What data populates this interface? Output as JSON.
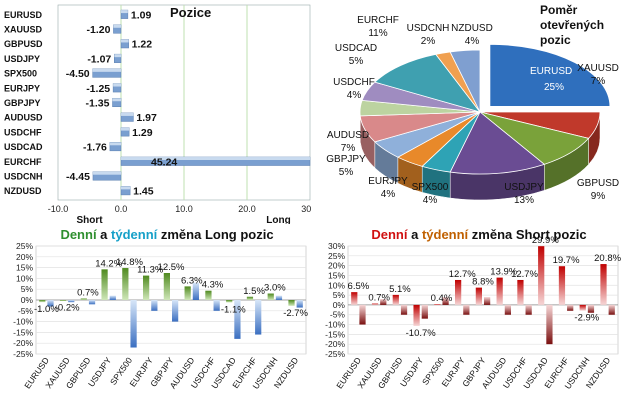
{
  "colors": {
    "bar_blue": "#7a9fd0",
    "bar_blue_light": "#dce8f6",
    "green_dark": "#4f8a1f",
    "green_light": "#cfe7b8",
    "blue_dark": "#3b6fc1",
    "blue_light": "#d7e6f8",
    "red_dark": "#c00000",
    "red_light": "#f6d6d6",
    "grid_green": "#bfe0b0",
    "title_green": "#2f8f2f",
    "title_cyan": "#16a0c8",
    "title_red": "#d01010",
    "title_orange": "#c06000"
  },
  "chart_data": [
    {
      "id": "positions",
      "type": "bar",
      "orientation": "horizontal",
      "title": "Pozice",
      "categories": [
        "EURUSD",
        "XAUUSD",
        "GBPUSD",
        "USDJPY",
        "SPX500",
        "EURJPY",
        "GBPJPY",
        "AUDUSD",
        "USDCHF",
        "USDCAD",
        "EURCHF",
        "USDCNH",
        "NZDUSD"
      ],
      "values": [
        1.09,
        -1.2,
        1.22,
        -1.07,
        -4.5,
        -1.25,
        -1.35,
        1.97,
        1.29,
        -1.76,
        45.24,
        -4.45,
        1.45
      ],
      "value_labels": [
        "1.09",
        "-1.20",
        "1.22",
        "-1.07",
        "-4.50",
        "-1.25",
        "-1.35",
        "1.97",
        "1.29",
        "-1.76",
        "45.24",
        "-4.45",
        "1.45"
      ],
      "xlim": [
        -10,
        30
      ],
      "xticks": [
        -10,
        0,
        10,
        20,
        30
      ],
      "xtick_labels": [
        "-10.0",
        "0.0",
        "10.0",
        "20.0",
        "30.0"
      ],
      "xlabel_short": "Short",
      "xlabel_long": "Long"
    },
    {
      "id": "open-ratio",
      "type": "pie",
      "title_lines": [
        "Poměr",
        "otevřených",
        "pozic"
      ],
      "slices": [
        {
          "label": "EURUSD",
          "value": 25,
          "value_label": "25%",
          "color": "#2f6fbd"
        },
        {
          "label": "XAUUSD",
          "value": 7,
          "value_label": "7%",
          "color": "#c0392b"
        },
        {
          "label": "GBPUSD",
          "value": 9,
          "value_label": "9%",
          "color": "#7aa23a"
        },
        {
          "label": "USDJPY",
          "value": 13,
          "value_label": "13%",
          "color": "#6a4c93"
        },
        {
          "label": "SPX500",
          "value": 4,
          "value_label": "4%",
          "color": "#2ea3b5"
        },
        {
          "label": "EURJPY",
          "value": 4,
          "value_label": "4%",
          "color": "#e8892a"
        },
        {
          "label": "GBPJPY",
          "value": 5,
          "value_label": "5%",
          "color": "#8fb0da"
        },
        {
          "label": "AUDUSD",
          "value": 7,
          "value_label": "7%",
          "color": "#d9898a"
        },
        {
          "label": "USDCHF",
          "value": 4,
          "value_label": "4%",
          "color": "#bcd3a0"
        },
        {
          "label": "USDCAD",
          "value": 5,
          "value_label": "5%",
          "color": "#9f8cc0"
        },
        {
          "label": "EURCHF",
          "value": 11,
          "value_label": "11%",
          "color": "#3fa0b0"
        },
        {
          "label": "USDCNH",
          "value": 2,
          "value_label": "2%",
          "color": "#f0a050"
        },
        {
          "label": "NZDUSD",
          "value": 4,
          "value_label": "4%",
          "color": "#7f9fd0"
        }
      ]
    },
    {
      "id": "long-change",
      "type": "bar",
      "title_parts": [
        "Denní",
        " a ",
        "týdenní",
        " změna Long pozic"
      ],
      "categories": [
        "EURUSD",
        "XAUUSD",
        "GBPUSD",
        "USDJPY",
        "SPX500",
        "EURJPY",
        "GBPJPY",
        "AUDUSD",
        "USDCHF",
        "USDCAD",
        "EURCHF",
        "USDCNH",
        "NZDUSD"
      ],
      "series": [
        {
          "values": [
            -1.0,
            -0.2,
            0.7,
            14.2,
            14.8,
            11.3,
            12.5,
            6.3,
            4.3,
            -1.1,
            1.5,
            3.0,
            -2.7
          ]
        },
        {
          "values": [
            -3.0,
            -1.0,
            -2.0,
            2.0,
            -22.0,
            -5.0,
            -10.0,
            8.0,
            -5.0,
            -18.0,
            -16.0,
            2.0,
            -3.5
          ]
        }
      ],
      "data_labels": [
        "-1.0%",
        "-0.2%",
        "0.7%",
        "14.2%",
        "14.8%",
        "11.3%",
        "12.5%",
        "6.3%",
        "4.3%",
        "-1.1%",
        "1.5%",
        "3.0%",
        "-2.7%"
      ],
      "ylim": [
        -25,
        25
      ],
      "yticks": [
        -25,
        -20,
        -15,
        -10,
        -5,
        0,
        5,
        10,
        15,
        20,
        25
      ],
      "ytick_labels": [
        "-25%",
        "-20%",
        "-15%",
        "-10%",
        "-5%",
        "0%",
        "5%",
        "10%",
        "15%",
        "20%",
        "25%"
      ]
    },
    {
      "id": "short-change",
      "type": "bar",
      "title_parts": [
        "Denní",
        " a ",
        "týdenní",
        " změna Short pozic"
      ],
      "categories": [
        "EURUSD",
        "XAUUSD",
        "GBPUSD",
        "USDJPY",
        "SPX500",
        "EURJPY",
        "GBPJPY",
        "AUDUSD",
        "USDCHF",
        "USDCAD",
        "EURCHF",
        "USDCNH",
        "NZDUSD"
      ],
      "series": [
        {
          "values": [
            6.5,
            0.7,
            5.1,
            -10.7,
            0.4,
            12.7,
            8.8,
            13.9,
            12.7,
            29.9,
            19.7,
            -2.9,
            20.8
          ]
        },
        {
          "values": [
            -10.0,
            3.0,
            -5.0,
            -7.0,
            4.0,
            -5.0,
            4.0,
            -5.0,
            -5.0,
            -20.0,
            -3.0,
            -4.0,
            -5.0
          ]
        }
      ],
      "data_labels": [
        "6.5%",
        "0.7%",
        "5.1%",
        "-10.7%",
        "0.4%",
        "12.7%",
        "8.8%",
        "13.9%",
        "12.7%",
        "29.9%",
        "19.7%",
        "-2.9%",
        "20.8%"
      ],
      "ylim": [
        -25,
        30
      ],
      "yticks": [
        -25,
        -20,
        -15,
        -10,
        -5,
        0,
        5,
        10,
        15,
        20,
        25,
        30
      ],
      "ytick_labels": [
        "-25%",
        "-20%",
        "-15%",
        "-10%",
        "-5%",
        "0%",
        "5%",
        "10%",
        "15%",
        "20%",
        "25%",
        "30%"
      ]
    }
  ]
}
